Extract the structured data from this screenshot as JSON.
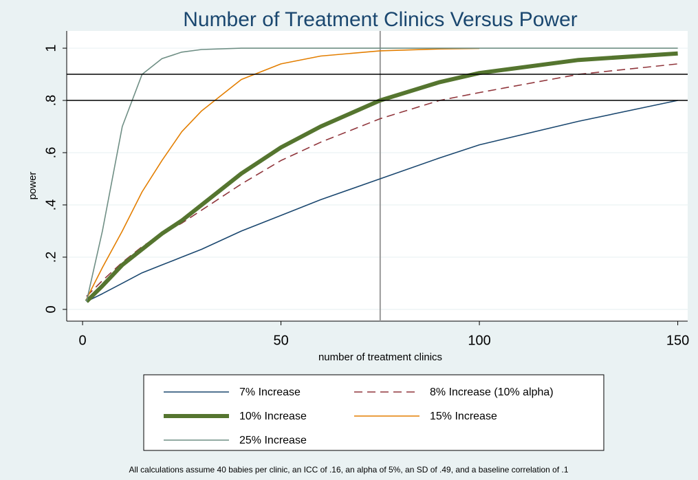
{
  "chart_data": {
    "type": "line",
    "title": "Number of Treatment Clinics Versus Power",
    "x_label": "number of treatment clinics",
    "y_label": "power",
    "note": "All calculations assume 40 babies per clinic, an ICC of .16, an alpha of 5%, an SD of .49, and a baseline correlation of .1",
    "x": [
      1,
      5,
      10,
      15,
      20,
      25,
      30,
      40,
      50,
      60,
      75,
      90,
      100,
      125,
      150
    ],
    "series": [
      {
        "name": "7% Increase",
        "color": "#1a476f",
        "style": "solid",
        "width": 1.6,
        "values": [
          0.03,
          0.06,
          0.1,
          0.14,
          0.17,
          0.2,
          0.23,
          0.3,
          0.36,
          0.42,
          0.5,
          0.58,
          0.63,
          0.72,
          0.8
        ]
      },
      {
        "name": "8% Increase (10% alpha)",
        "color": "#90353b",
        "style": "dashed",
        "width": 1.6,
        "values": [
          0.05,
          0.11,
          0.18,
          0.24,
          0.29,
          0.33,
          0.38,
          0.48,
          0.57,
          0.64,
          0.73,
          0.8,
          0.83,
          0.9,
          0.94
        ]
      },
      {
        "name": "10% Increase",
        "color": "#55752f",
        "style": "solid",
        "width": 6,
        "values": [
          0.03,
          0.09,
          0.17,
          0.23,
          0.29,
          0.34,
          0.4,
          0.52,
          0.62,
          0.7,
          0.8,
          0.87,
          0.905,
          0.955,
          0.98
        ]
      },
      {
        "name": "15% Increase",
        "color": "#e37e00",
        "style": "solid",
        "width": 1.6,
        "values": [
          0.04,
          0.16,
          0.3,
          0.45,
          0.57,
          0.68,
          0.76,
          0.88,
          0.94,
          0.97,
          0.99,
          0.997,
          0.999,
          null,
          null
        ]
      },
      {
        "name": "25% Increase",
        "color": "#6e8e84",
        "style": "solid",
        "width": 1.6,
        "values": [
          0.03,
          0.3,
          0.7,
          0.9,
          0.96,
          0.985,
          0.995,
          1,
          1,
          1,
          1,
          1,
          1,
          1,
          1
        ]
      }
    ],
    "xlim": [
      -4,
      152.5
    ],
    "ylim": [
      -0.045,
      1.066
    ],
    "xticks": [
      0,
      50,
      100,
      150
    ],
    "yticks": [
      0,
      {
        "value": 0.2,
        "label": ".2"
      },
      {
        "value": 0.4,
        "label": ".4"
      },
      {
        "value": 0.6,
        "label": ".6"
      },
      {
        "value": 0.8,
        "label": ".8"
      },
      1
    ],
    "grid": true,
    "reference_lines": {
      "y": [
        0.8,
        0.9
      ],
      "x": [
        75
      ]
    },
    "legend": "bottom"
  }
}
